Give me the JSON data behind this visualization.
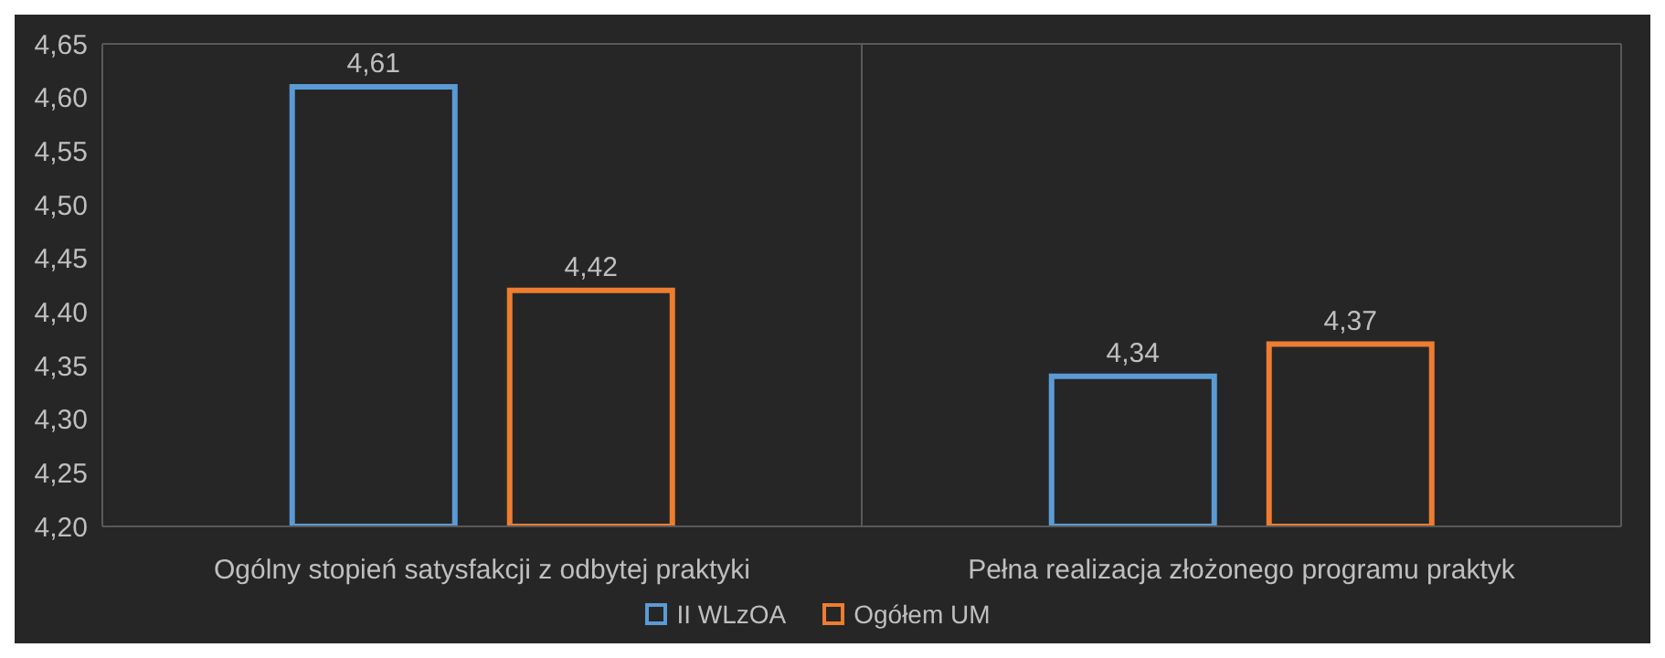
{
  "chart_data": {
    "type": "bar",
    "categories": [
      "Ogólny stopień satysfakcji z odbytej praktyki",
      "Pełna realizacja złożonego programu praktyk"
    ],
    "series": [
      {
        "name": "II WLzOA",
        "color": "#5b9bd5",
        "values": [
          4.61,
          4.34
        ],
        "value_labels": [
          "4,61",
          "4,34"
        ]
      },
      {
        "name": "Ogółem UM",
        "color": "#ed7d31",
        "values": [
          4.42,
          4.37
        ],
        "value_labels": [
          "4,42",
          "4,37"
        ]
      }
    ],
    "ylim": [
      4.2,
      4.65
    ],
    "yticks": [
      {
        "value": 4.2,
        "label": "4,20"
      },
      {
        "value": 4.25,
        "label": "4,25"
      },
      {
        "value": 4.3,
        "label": "4,30"
      },
      {
        "value": 4.35,
        "label": "4,35"
      },
      {
        "value": 4.4,
        "label": "4,40"
      },
      {
        "value": 4.45,
        "label": "4,45"
      },
      {
        "value": 4.5,
        "label": "4,50"
      },
      {
        "value": 4.55,
        "label": "4,55"
      },
      {
        "value": 4.6,
        "label": "4,60"
      },
      {
        "value": 4.65,
        "label": "4,65"
      }
    ],
    "grid": true,
    "legend": "bottom"
  }
}
